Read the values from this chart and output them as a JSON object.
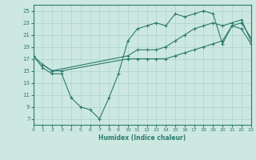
{
  "xlabel": "Humidex (Indice chaleur)",
  "bg_color": "#cce8e0",
  "line_color": "#2d7a6e",
  "grid_color": "#aad4cc",
  "xlim": [
    0,
    23
  ],
  "ylim": [
    6,
    26
  ],
  "xticks": [
    0,
    1,
    2,
    3,
    4,
    5,
    6,
    7,
    8,
    9,
    10,
    11,
    12,
    13,
    14,
    15,
    16,
    17,
    18,
    19,
    20,
    21,
    22,
    23
  ],
  "yticks": [
    7,
    9,
    11,
    13,
    15,
    17,
    19,
    21,
    23,
    25
  ],
  "line1_x": [
    0,
    1,
    2,
    3,
    4,
    5,
    6,
    7,
    8,
    9,
    10,
    11,
    12,
    13,
    14,
    15,
    16,
    17,
    18,
    19,
    20,
    21,
    22,
    23
  ],
  "line1_y": [
    17.5,
    15.5,
    14.5,
    14.5,
    10.5,
    9.0,
    8.5,
    7.0,
    10.5,
    14.5,
    20.0,
    22.0,
    22.5,
    23.0,
    22.5,
    24.5,
    24.0,
    24.5,
    25.0,
    24.5,
    19.5,
    22.5,
    23.0,
    20.5
  ],
  "line2_x": [
    1,
    2,
    10,
    11,
    12,
    13,
    14,
    15,
    16,
    17,
    18,
    19,
    20,
    21,
    22,
    23
  ],
  "line2_y": [
    16.0,
    15.0,
    17.5,
    18.5,
    18.5,
    18.5,
    19.0,
    20.0,
    21.0,
    22.0,
    22.5,
    23.0,
    22.5,
    23.0,
    23.5,
    20.0
  ],
  "line3_x": [
    0,
    1,
    2,
    3,
    10,
    11,
    12,
    13,
    14,
    15,
    16,
    17,
    18,
    19,
    20,
    21,
    22,
    23
  ],
  "line3_y": [
    17.5,
    16.0,
    15.0,
    15.0,
    17.0,
    17.0,
    17.0,
    17.0,
    17.0,
    17.5,
    18.0,
    18.5,
    19.0,
    19.5,
    20.0,
    22.5,
    22.0,
    19.5
  ]
}
